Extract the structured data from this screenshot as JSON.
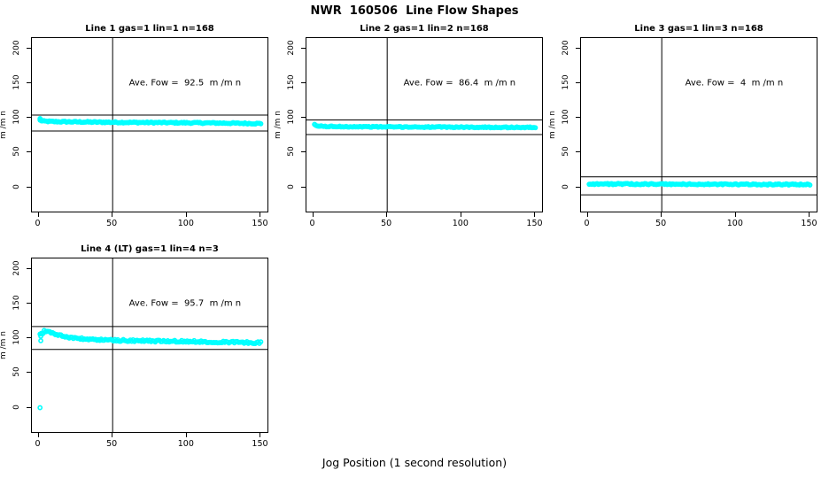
{
  "main_title": "NWR  160506  Line Flow Shapes",
  "x_axis_label": "Jog Position (1 second resolution)",
  "colors": {
    "points": "#00FFFF",
    "axis": "#000000"
  },
  "axes": {
    "ylabel": "m /m n",
    "x_tick_values": [
      0,
      50,
      100,
      150
    ],
    "y_tick_values": [
      0,
      50,
      100,
      150,
      200
    ],
    "xlim": [
      -4.5,
      154.5
    ],
    "ylim": [
      -35,
      215
    ]
  },
  "chart_data": [
    {
      "type": "scatter",
      "title": "Line 1 gas=1 lin=1 n=168",
      "annotation": "Ave. Fow =  92.5  m /m n",
      "ave_flow": 92.5,
      "n": 168,
      "x_range": [
        1,
        150
      ],
      "vline_x": 50,
      "hlines": [
        104,
        81
      ],
      "profile": [
        [
          1,
          96.5
        ],
        [
          3,
          95.2
        ],
        [
          10,
          94.6
        ],
        [
          40,
          93.8
        ],
        [
          80,
          93.2
        ],
        [
          120,
          92.6
        ],
        [
          150,
          91.8
        ]
      ],
      "extra_points": [
        [
          1,
          99
        ],
        [
          1.5,
          97.5
        ],
        [
          2,
          96.5
        ]
      ],
      "jitter": 0.9,
      "n_render": 168
    },
    {
      "type": "scatter",
      "title": "Line 2 gas=1 lin=2 n=168",
      "annotation": "Ave. Fow =  86.4  m /m n",
      "ave_flow": 86.4,
      "n": 168,
      "x_range": [
        1,
        150
      ],
      "vline_x": 50,
      "hlines": [
        97,
        76
      ],
      "profile": [
        [
          1,
          90
        ],
        [
          2,
          88.5
        ],
        [
          8,
          87.6
        ],
        [
          50,
          87
        ],
        [
          100,
          86.6
        ],
        [
          150,
          86.2
        ]
      ],
      "extra_points": [
        [
          1,
          90.5
        ]
      ],
      "jitter": 0.7,
      "n_render": 168
    },
    {
      "type": "scatter",
      "title": "Line 3 gas=1 lin=3 n=168",
      "annotation": "Ave. Fow =  4  m /m n",
      "ave_flow": 4,
      "n": 168,
      "x_range": [
        1,
        150
      ],
      "vline_x": 50,
      "hlines": [
        15,
        -11
      ],
      "profile": [
        [
          1,
          4.8
        ],
        [
          75,
          4.3
        ],
        [
          150,
          4
        ]
      ],
      "extra_points": [],
      "jitter": 0.9,
      "n_render": 168
    },
    {
      "type": "scatter",
      "title": "Line 4 (LT) gas=1 lin=4 n=3",
      "annotation": "Ave. Fow =  95.7  m /m n",
      "ave_flow": 95.7,
      "n": 3,
      "x_range": [
        1,
        150
      ],
      "vline_x": 50,
      "hlines": [
        117,
        84
      ],
      "profile": [
        [
          2,
          106
        ],
        [
          4,
          110.5
        ],
        [
          7,
          109.5
        ],
        [
          12,
          105.5
        ],
        [
          20,
          101.5
        ],
        [
          30,
          99
        ],
        [
          45,
          97.5
        ],
        [
          70,
          96.3
        ],
        [
          110,
          95.2
        ],
        [
          150,
          93.6
        ]
      ],
      "extra_points": [
        [
          1,
          0
        ],
        [
          1.5,
          103
        ],
        [
          1.5,
          96.5
        ]
      ],
      "jitter": 1.4,
      "n_render": 160
    }
  ]
}
